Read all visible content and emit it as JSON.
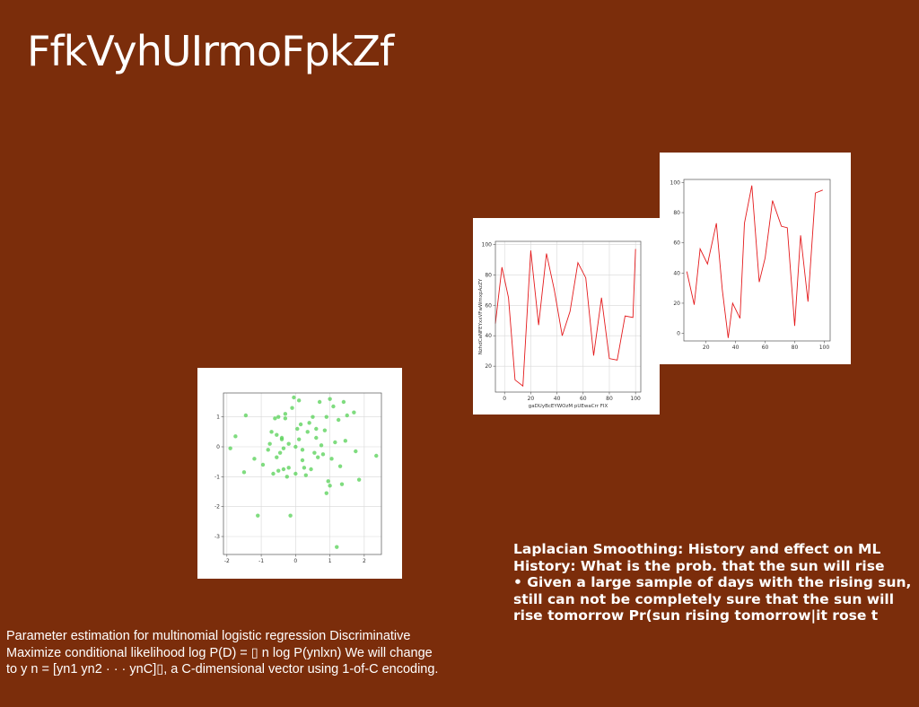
{
  "slide": {
    "title": "FfkVyhUIrmoFpkZf",
    "background": "#7b2d0b"
  },
  "right_text": [
    "Laplacian Smoothing: History and effect on ML",
    "History: What is the prob. that the sun will rise",
    "• Given a large sample of days with the rising sun,",
    "still can not be completely sure that the sun will",
    "rise tomorrow Pr(sun rising tomorrow|it rose t"
  ],
  "left_text": [
    "Parameter estimation for multinomial logistic regression Discriminative",
    "Maximize conditional likelihood log P(D) = ▯ n log P(ynlxn) We will change",
    "to y n = [yn1 yn2 · · · ynC]▯, a C-dimensional vector using 1-of-C encoding."
  ],
  "chart_data": [
    {
      "type": "scatter",
      "color": "#5fd35f",
      "xlim": [
        -2.1,
        2.5
      ],
      "ylim": [
        -3.6,
        1.8
      ],
      "xticks": [
        "-2",
        "-1",
        "0",
        "1",
        "2"
      ],
      "yticks": [
        "-3",
        "-2",
        "-1",
        "0",
        "1"
      ],
      "grid": true,
      "points": [
        [
          -1.9,
          -0.05
        ],
        [
          -1.75,
          0.35
        ],
        [
          -1.5,
          -0.85
        ],
        [
          -1.45,
          1.05
        ],
        [
          -1.2,
          -0.4
        ],
        [
          -1.1,
          -2.3
        ],
        [
          -0.95,
          -0.6
        ],
        [
          -0.8,
          -0.1
        ],
        [
          -0.7,
          0.5
        ],
        [
          -0.65,
          -0.9
        ],
        [
          -0.6,
          0.95
        ],
        [
          -0.55,
          0.4
        ],
        [
          -0.55,
          -0.35
        ],
        [
          -0.5,
          -0.8
        ],
        [
          -0.5,
          1.0
        ],
        [
          -0.45,
          -0.2
        ],
        [
          -0.4,
          0.25
        ],
        [
          -0.4,
          0.3
        ],
        [
          -0.35,
          -0.05
        ],
        [
          -0.35,
          -0.75
        ],
        [
          -0.3,
          1.1
        ],
        [
          -0.25,
          -1.0
        ],
        [
          -0.2,
          0.1
        ],
        [
          -0.2,
          -0.7
        ],
        [
          -0.15,
          -2.3
        ],
        [
          -0.1,
          1.3
        ],
        [
          -0.05,
          1.65
        ],
        [
          0.0,
          -0.9
        ],
        [
          0.05,
          0.6
        ],
        [
          0.1,
          0.25
        ],
        [
          0.1,
          1.55
        ],
        [
          0.15,
          0.75
        ],
        [
          0.2,
          -0.1
        ],
        [
          0.2,
          -0.45
        ],
        [
          0.25,
          -0.7
        ],
        [
          0.3,
          -0.95
        ],
        [
          0.35,
          0.5
        ],
        [
          0.4,
          0.8
        ],
        [
          0.45,
          -0.75
        ],
        [
          0.5,
          1.0
        ],
        [
          0.55,
          -0.2
        ],
        [
          0.6,
          0.3
        ],
        [
          0.65,
          -0.35
        ],
        [
          0.7,
          1.5
        ],
        [
          0.75,
          0.05
        ],
        [
          0.8,
          -0.25
        ],
        [
          0.85,
          0.55
        ],
        [
          0.9,
          -1.55
        ],
        [
          0.95,
          -1.15
        ],
        [
          1.0,
          -1.3
        ],
        [
          1.0,
          1.6
        ],
        [
          1.05,
          -0.4
        ],
        [
          1.1,
          1.35
        ],
        [
          1.15,
          0.15
        ],
        [
          1.2,
          -3.35
        ],
        [
          1.25,
          0.9
        ],
        [
          1.3,
          -0.65
        ],
        [
          1.35,
          -1.25
        ],
        [
          1.4,
          1.5
        ],
        [
          1.45,
          0.2
        ],
        [
          1.5,
          1.05
        ],
        [
          1.7,
          1.15
        ],
        [
          1.75,
          -0.15
        ],
        [
          1.85,
          -1.1
        ],
        [
          2.35,
          -0.3
        ],
        [
          0.9,
          1.0
        ],
        [
          -0.75,
          0.1
        ],
        [
          0.0,
          0.0
        ],
        [
          0.6,
          0.6
        ],
        [
          -0.3,
          0.95
        ]
      ]
    },
    {
      "type": "line",
      "color": "#e41a1c",
      "ylabel": "NzhdCaNFEYxxVFwWmxpAzZY",
      "xlabel": "gaDUyBcEYWOzM pUEwaCrr FIX",
      "xlim": [
        -7,
        104
      ],
      "ylim": [
        3,
        102
      ],
      "xticks": [
        "0",
        "20",
        "40",
        "60",
        "80",
        "100"
      ],
      "yticks": [
        "20",
        "40",
        "60",
        "80",
        "100"
      ],
      "grid": true,
      "x": [
        -7,
        -2,
        3,
        8,
        14,
        20,
        26,
        32,
        38,
        44,
        50,
        56,
        62,
        68,
        74,
        80,
        86,
        92,
        98,
        100
      ],
      "y": [
        48,
        85,
        65,
        11,
        7,
        96,
        47,
        94,
        70,
        40,
        56,
        88,
        78,
        27,
        65,
        25,
        24,
        53,
        52,
        97
      ]
    },
    {
      "type": "line",
      "color": "#e41a1c",
      "xlim": [
        5,
        104
      ],
      "ylim": [
        -5,
        102
      ],
      "xticks": [
        "20",
        "40",
        "60",
        "80",
        "100"
      ],
      "yticks": [
        "0",
        "20",
        "40",
        "60",
        "80",
        "100"
      ],
      "grid": false,
      "x": [
        7,
        12,
        16,
        21,
        27,
        31,
        35,
        38,
        43,
        46,
        51,
        56,
        60,
        65,
        71,
        75,
        80,
        84,
        89,
        94,
        99
      ],
      "y": [
        41,
        19,
        56,
        46,
        73,
        29,
        -3,
        20,
        10,
        73,
        98,
        34,
        50,
        88,
        71,
        70,
        5,
        65,
        21,
        93,
        95
      ]
    }
  ]
}
